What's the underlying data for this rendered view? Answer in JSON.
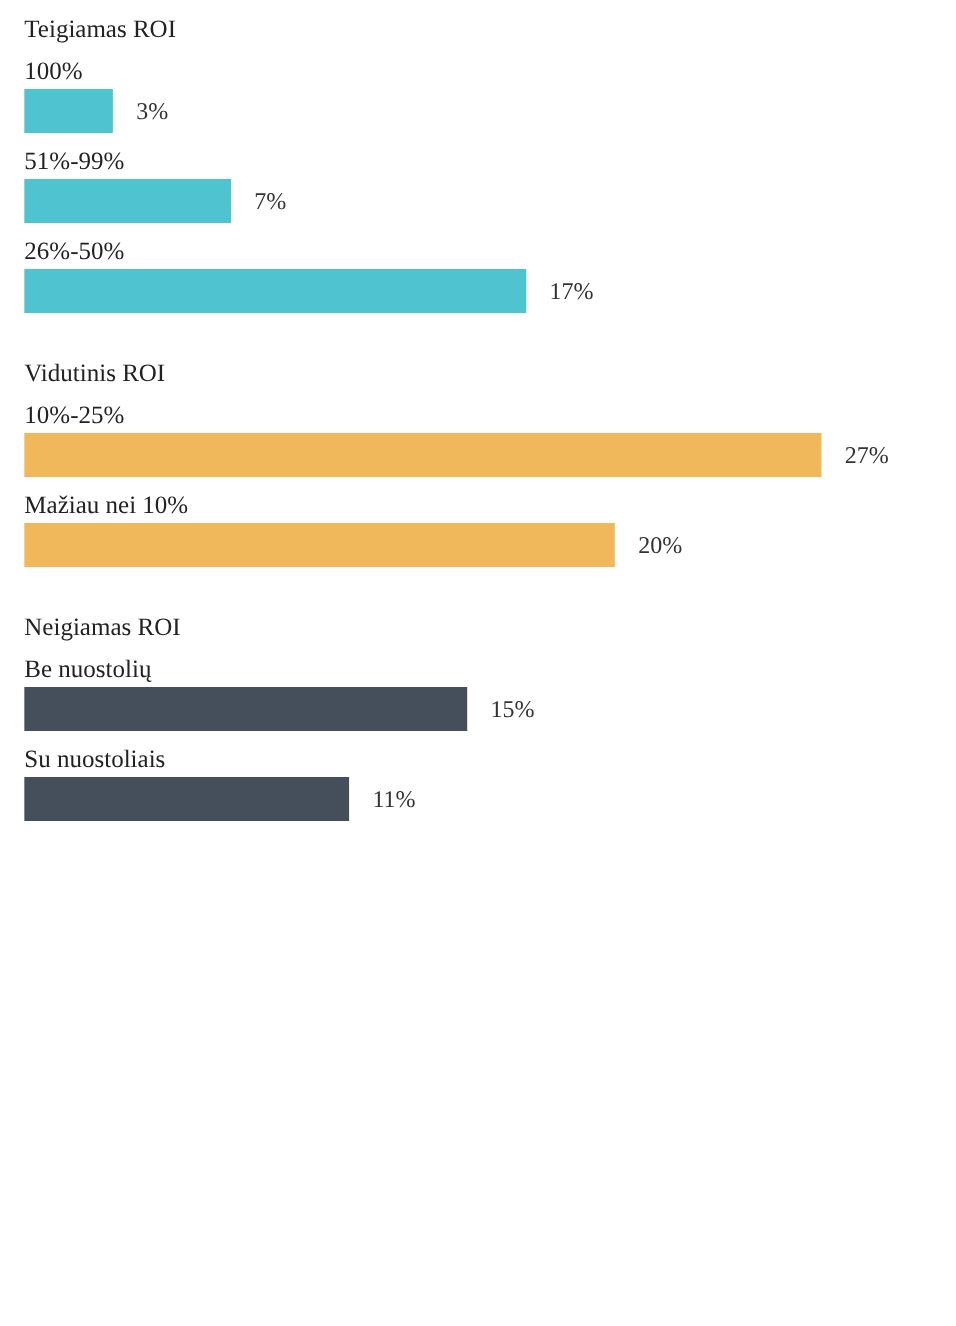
{
  "chart_data": {
    "type": "bar",
    "orientation": "horizontal",
    "categories": [
      "100%",
      "51%-99%",
      "26%-50%",
      "10%-25%",
      "Mažiau nei 10%",
      "Be nuostolių",
      "Su nuostoliais"
    ],
    "series": [
      {
        "name": "Teigiamas ROI",
        "color": "#4fc3d0",
        "values": [
          3,
          7,
          17,
          null,
          null,
          null,
          null
        ],
        "value_labels": [
          "3%",
          "7%",
          "17%",
          null,
          null,
          null,
          null
        ]
      },
      {
        "name": "Vidutinis ROI",
        "color": "#f0b85a",
        "values": [
          null,
          null,
          null,
          27,
          20,
          null,
          null
        ],
        "value_labels": [
          null,
          null,
          null,
          "27%",
          "20%",
          null,
          null
        ]
      },
      {
        "name": "Neigiamas ROI",
        "color": "#454f5c",
        "values": [
          null,
          null,
          null,
          null,
          null,
          15,
          11
        ],
        "value_labels": [
          null,
          null,
          null,
          null,
          null,
          "15%",
          "11%"
        ]
      }
    ]
  }
}
